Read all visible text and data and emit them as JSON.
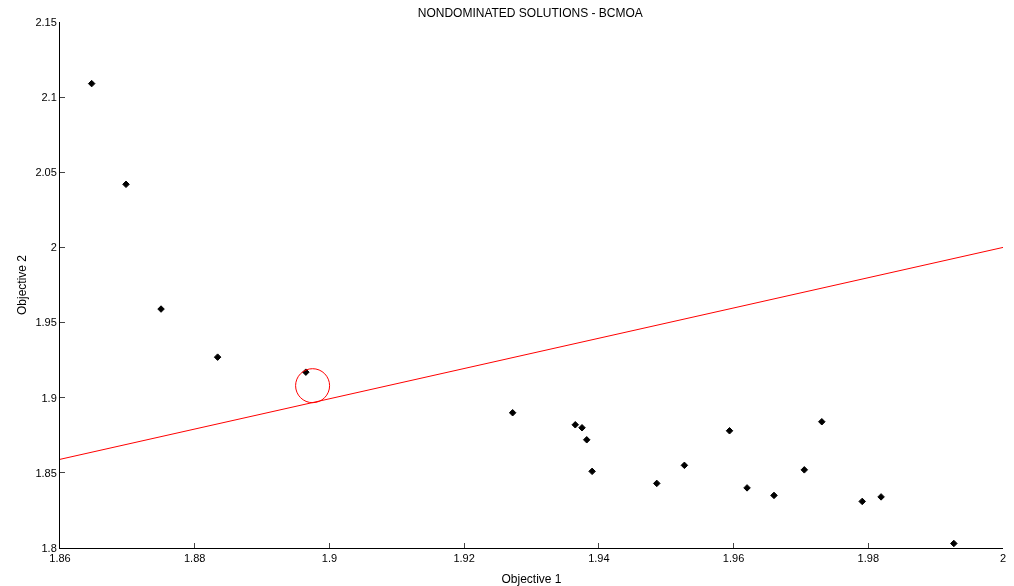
{
  "chart_data": {
    "type": "scatter",
    "title": "NONDOMINATED SOLUTIONS - BCMOA",
    "xlabel": "Objective 1",
    "ylabel": "Objective 2",
    "xlim": [
      1.86,
      2
    ],
    "xticks": [
      1.86,
      1.88,
      1.9,
      1.92,
      1.94,
      1.96,
      1.98,
      2
    ],
    "ylim": [
      1.8,
      2.15
    ],
    "yticks": [
      1.8,
      1.85,
      1.9,
      1.95,
      2,
      2.05,
      2.1,
      2.15
    ],
    "grid": false,
    "legend": false,
    "series": [
      {
        "marker": "diamond",
        "color": "#000000",
        "x": [
          1.8647,
          1.8698,
          1.875,
          1.8834,
          1.8965,
          1.9272,
          1.9365,
          1.9375,
          1.9382,
          1.939,
          1.9486,
          1.9527,
          1.9594,
          1.962,
          1.966,
          1.9705,
          1.9731,
          1.9791,
          1.9819,
          1.9927
        ],
        "values": [
          2.109,
          2.042,
          1.959,
          1.927,
          1.917,
          1.89,
          1.882,
          1.88,
          1.872,
          1.851,
          1.843,
          1.855,
          1.878,
          1.84,
          1.835,
          1.852,
          1.884,
          1.831,
          1.834,
          1.803
        ]
      },
      {
        "type": "line",
        "marker": "none",
        "line_style": "solid",
        "color": "#ff0000",
        "x": [
          1.86,
          2
        ],
        "values": [
          1.859,
          2.0
        ]
      },
      {
        "type": "scatter",
        "marker": "circle",
        "color": "#ff0000",
        "x": [
          1.8975
        ],
        "values": [
          1.908
        ]
      }
    ]
  }
}
